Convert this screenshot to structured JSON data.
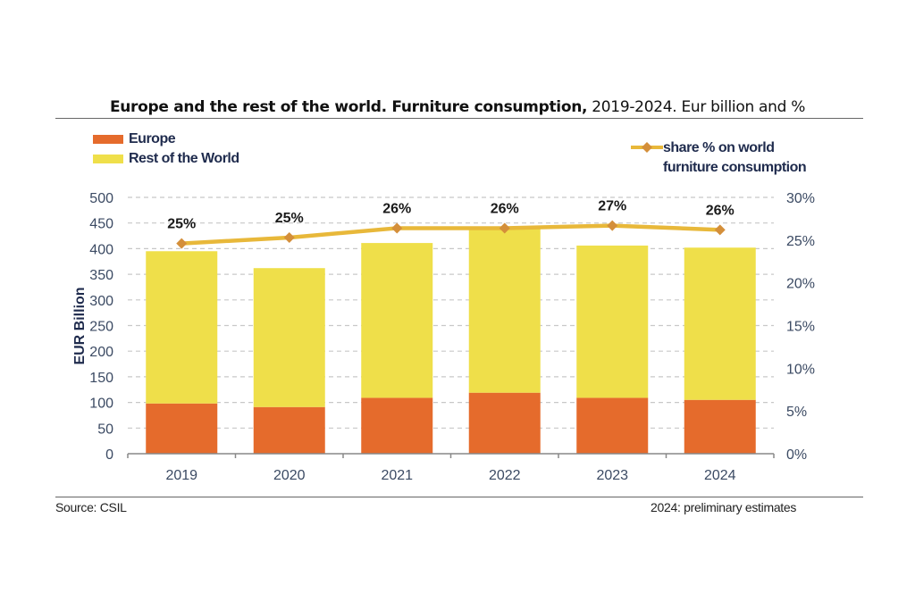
{
  "header": {
    "title_bold": "Europe and the rest of the world. Furniture consumption,",
    "title_rest": " 2019-2024. Eur billion and %"
  },
  "footer": {
    "source": "Source: CSIL",
    "note": "2024: preliminary estimates"
  },
  "colors": {
    "europe": "#e56b2c",
    "rest_of_world": "#efdf4a",
    "share_line": "#e8b83a",
    "share_marker": "#d48f3a",
    "grid": "#c8c8c8",
    "axis": "#888888"
  },
  "chart_data": {
    "type": "bar",
    "stacked": true,
    "title": "Europe and the rest of the world. Furniture consumption, 2019-2024. Eur billion and %",
    "categories": [
      "2019",
      "2020",
      "2021",
      "2022",
      "2023",
      "2024"
    ],
    "series": [
      {
        "name": "Europe",
        "type": "bar",
        "axis": "left",
        "values": [
          98,
          91,
          109,
          119,
          109,
          105
        ]
      },
      {
        "name": "Rest of the World",
        "type": "bar",
        "axis": "left",
        "values": [
          297,
          271,
          302,
          322,
          297,
          297
        ]
      },
      {
        "name": "share % on world furniture consumption",
        "type": "line",
        "axis": "right",
        "values": [
          24.6,
          25.3,
          26.4,
          26.4,
          26.7,
          26.2
        ],
        "labels": [
          "25%",
          "25%",
          "26%",
          "26%",
          "27%",
          "26%"
        ]
      }
    ],
    "ylabel": "EUR Billion",
    "ylim": [
      0,
      500
    ],
    "yticks": [
      "0",
      "50",
      "100",
      "150",
      "200",
      "250",
      "300",
      "350",
      "400",
      "450",
      "500"
    ],
    "y2lim": [
      0,
      30
    ],
    "y2ticks": [
      "0%",
      "5%",
      "10%",
      "15%",
      "20%",
      "25%",
      "30%"
    ],
    "xlabel": "",
    "grid": true,
    "legend": {
      "left": [
        "Europe",
        "Rest of the World"
      ],
      "right_line1": "share % on world",
      "right_line2": "furniture consumption",
      "placement": "top"
    },
    "note": "2024: preliminary estimates"
  }
}
